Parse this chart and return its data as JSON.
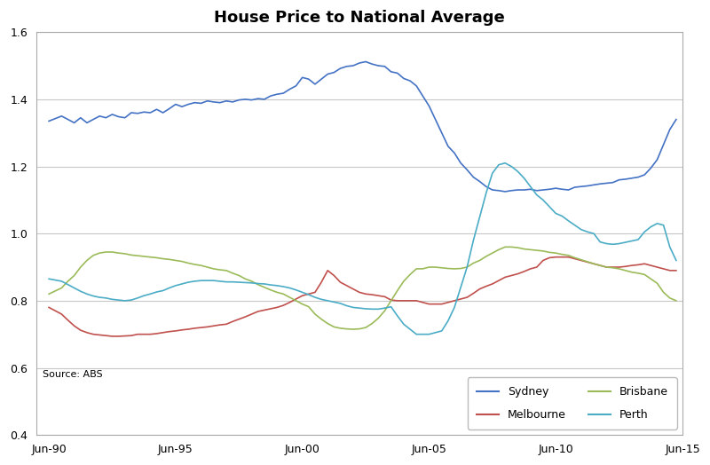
{
  "title": "House Price to National Average",
  "source_text": "Source: ABS",
  "ylim": [
    0.4,
    1.6
  ],
  "yticks": [
    0.4,
    0.6,
    0.8,
    1.0,
    1.2,
    1.4,
    1.6
  ],
  "xtick_labels": [
    "Jun-90",
    "Jun-95",
    "Jun-00",
    "Jun-05",
    "Jun-10",
    "Jun-15"
  ],
  "xtick_years": [
    1990,
    1995,
    2000,
    2005,
    2010,
    2015
  ],
  "xlim": [
    1990.0,
    2015.5
  ],
  "colors": {
    "Sydney": "#4472C4",
    "Melbourne": "#C0504D",
    "Brisbane": "#9BBB59",
    "Perth": "#4BACC6"
  },
  "Sydney": {
    "years": [
      1990.5,
      1991.0,
      1991.25,
      1991.5,
      1991.75,
      1992.0,
      1992.25,
      1992.5,
      1992.75,
      1993.0,
      1993.25,
      1993.5,
      1993.75,
      1994.0,
      1994.25,
      1994.5,
      1994.75,
      1995.0,
      1995.25,
      1995.5,
      1995.75,
      1996.0,
      1996.25,
      1996.5,
      1996.75,
      1997.0,
      1997.25,
      1997.5,
      1997.75,
      1998.0,
      1998.25,
      1998.5,
      1998.75,
      1999.0,
      1999.25,
      1999.5,
      1999.75,
      2000.0,
      2000.25,
      2000.5,
      2000.75,
      2001.0,
      2001.25,
      2001.5,
      2001.75,
      2002.0,
      2002.25,
      2002.5,
      2002.75,
      2003.0,
      2003.25,
      2003.5,
      2003.75,
      2004.0,
      2004.25,
      2004.5,
      2004.75,
      2005.0,
      2005.25,
      2005.5,
      2005.75,
      2006.0,
      2006.25,
      2006.5,
      2006.75,
      2007.0,
      2007.25,
      2007.5,
      2007.75,
      2008.0,
      2008.25,
      2008.5,
      2008.75,
      2009.0,
      2009.25,
      2009.5,
      2009.75,
      2010.0,
      2010.25,
      2010.5,
      2010.75,
      2011.0,
      2011.25,
      2011.5,
      2011.75,
      2012.0,
      2012.25,
      2012.5,
      2012.75,
      2013.0,
      2013.25,
      2013.5,
      2013.75,
      2014.0,
      2014.25,
      2014.5,
      2014.75,
      2015.0,
      2015.25
    ],
    "values": [
      1.335,
      1.35,
      1.34,
      1.33,
      1.345,
      1.33,
      1.34,
      1.35,
      1.345,
      1.355,
      1.348,
      1.345,
      1.36,
      1.358,
      1.362,
      1.36,
      1.37,
      1.36,
      1.372,
      1.385,
      1.378,
      1.385,
      1.39,
      1.388,
      1.395,
      1.392,
      1.39,
      1.395,
      1.392,
      1.398,
      1.4,
      1.398,
      1.402,
      1.4,
      1.41,
      1.415,
      1.418,
      1.43,
      1.44,
      1.465,
      1.46,
      1.445,
      1.46,
      1.475,
      1.48,
      1.492,
      1.498,
      1.5,
      1.508,
      1.512,
      1.505,
      1.5,
      1.498,
      1.482,
      1.478,
      1.462,
      1.455,
      1.44,
      1.41,
      1.38,
      1.34,
      1.3,
      1.26,
      1.24,
      1.21,
      1.19,
      1.168,
      1.155,
      1.14,
      1.13,
      1.128,
      1.125,
      1.128,
      1.13,
      1.13,
      1.132,
      1.128,
      1.13,
      1.132,
      1.135,
      1.132,
      1.13,
      1.138,
      1.14,
      1.142,
      1.145,
      1.148,
      1.15,
      1.152,
      1.16,
      1.162,
      1.165,
      1.168,
      1.175,
      1.195,
      1.22,
      1.265,
      1.31,
      1.34
    ]
  },
  "Melbourne": {
    "years": [
      1990.5,
      1991.0,
      1991.25,
      1991.5,
      1991.75,
      1992.0,
      1992.25,
      1992.5,
      1992.75,
      1993.0,
      1993.25,
      1993.5,
      1993.75,
      1994.0,
      1994.25,
      1994.5,
      1994.75,
      1995.0,
      1995.25,
      1995.5,
      1995.75,
      1996.0,
      1996.25,
      1996.5,
      1996.75,
      1997.0,
      1997.25,
      1997.5,
      1997.75,
      1998.0,
      1998.25,
      1998.5,
      1998.75,
      1999.0,
      1999.25,
      1999.5,
      1999.75,
      2000.0,
      2000.25,
      2000.5,
      2000.75,
      2001.0,
      2001.25,
      2001.5,
      2001.75,
      2002.0,
      2002.25,
      2002.5,
      2002.75,
      2003.0,
      2003.25,
      2003.5,
      2003.75,
      2004.0,
      2004.25,
      2004.5,
      2004.75,
      2005.0,
      2005.25,
      2005.5,
      2005.75,
      2006.0,
      2006.25,
      2006.5,
      2006.75,
      2007.0,
      2007.25,
      2007.5,
      2007.75,
      2008.0,
      2008.25,
      2008.5,
      2008.75,
      2009.0,
      2009.25,
      2009.5,
      2009.75,
      2010.0,
      2010.25,
      2010.5,
      2010.75,
      2011.0,
      2011.25,
      2011.5,
      2011.75,
      2012.0,
      2012.25,
      2012.5,
      2012.75,
      2013.0,
      2013.25,
      2013.5,
      2013.75,
      2014.0,
      2014.25,
      2014.5,
      2014.75,
      2015.0,
      2015.25
    ],
    "values": [
      0.78,
      0.76,
      0.742,
      0.725,
      0.712,
      0.705,
      0.7,
      0.698,
      0.696,
      0.694,
      0.694,
      0.695,
      0.696,
      0.7,
      0.7,
      0.7,
      0.702,
      0.705,
      0.708,
      0.71,
      0.713,
      0.715,
      0.718,
      0.72,
      0.722,
      0.725,
      0.728,
      0.73,
      0.738,
      0.745,
      0.752,
      0.76,
      0.768,
      0.772,
      0.776,
      0.78,
      0.786,
      0.795,
      0.805,
      0.815,
      0.82,
      0.825,
      0.855,
      0.89,
      0.875,
      0.855,
      0.845,
      0.835,
      0.825,
      0.82,
      0.818,
      0.815,
      0.812,
      0.802,
      0.8,
      0.8,
      0.8,
      0.8,
      0.795,
      0.79,
      0.79,
      0.79,
      0.795,
      0.8,
      0.805,
      0.81,
      0.822,
      0.835,
      0.843,
      0.85,
      0.86,
      0.87,
      0.875,
      0.88,
      0.887,
      0.895,
      0.9,
      0.92,
      0.928,
      0.93,
      0.93,
      0.93,
      0.925,
      0.92,
      0.915,
      0.91,
      0.905,
      0.9,
      0.9,
      0.9,
      0.902,
      0.905,
      0.907,
      0.91,
      0.905,
      0.9,
      0.895,
      0.89,
      0.89
    ]
  },
  "Brisbane": {
    "years": [
      1990.5,
      1991.0,
      1991.25,
      1991.5,
      1991.75,
      1992.0,
      1992.25,
      1992.5,
      1992.75,
      1993.0,
      1993.25,
      1993.5,
      1993.75,
      1994.0,
      1994.25,
      1994.5,
      1994.75,
      1995.0,
      1995.25,
      1995.5,
      1995.75,
      1996.0,
      1996.25,
      1996.5,
      1996.75,
      1997.0,
      1997.25,
      1997.5,
      1997.75,
      1998.0,
      1998.25,
      1998.5,
      1998.75,
      1999.0,
      1999.25,
      1999.5,
      1999.75,
      2000.0,
      2000.25,
      2000.5,
      2000.75,
      2001.0,
      2001.25,
      2001.5,
      2001.75,
      2002.0,
      2002.25,
      2002.5,
      2002.75,
      2003.0,
      2003.25,
      2003.5,
      2003.75,
      2004.0,
      2004.25,
      2004.5,
      2004.75,
      2005.0,
      2005.25,
      2005.5,
      2005.75,
      2006.0,
      2006.25,
      2006.5,
      2006.75,
      2007.0,
      2007.25,
      2007.5,
      2007.75,
      2008.0,
      2008.25,
      2008.5,
      2008.75,
      2009.0,
      2009.25,
      2009.5,
      2009.75,
      2010.0,
      2010.25,
      2010.5,
      2010.75,
      2011.0,
      2011.25,
      2011.5,
      2011.75,
      2012.0,
      2012.25,
      2012.5,
      2012.75,
      2013.0,
      2013.25,
      2013.5,
      2013.75,
      2014.0,
      2014.25,
      2014.5,
      2014.75,
      2015.0,
      2015.25
    ],
    "values": [
      0.82,
      0.838,
      0.858,
      0.875,
      0.9,
      0.92,
      0.935,
      0.942,
      0.945,
      0.945,
      0.942,
      0.94,
      0.936,
      0.934,
      0.932,
      0.93,
      0.928,
      0.925,
      0.923,
      0.92,
      0.917,
      0.912,
      0.908,
      0.905,
      0.9,
      0.895,
      0.892,
      0.89,
      0.882,
      0.875,
      0.865,
      0.858,
      0.848,
      0.84,
      0.832,
      0.825,
      0.82,
      0.81,
      0.8,
      0.79,
      0.782,
      0.76,
      0.745,
      0.732,
      0.722,
      0.718,
      0.716,
      0.715,
      0.716,
      0.72,
      0.732,
      0.748,
      0.77,
      0.8,
      0.83,
      0.858,
      0.878,
      0.895,
      0.895,
      0.9,
      0.9,
      0.898,
      0.896,
      0.895,
      0.896,
      0.9,
      0.912,
      0.92,
      0.932,
      0.942,
      0.952,
      0.96,
      0.96,
      0.958,
      0.954,
      0.952,
      0.95,
      0.948,
      0.944,
      0.942,
      0.938,
      0.935,
      0.928,
      0.922,
      0.916,
      0.91,
      0.905,
      0.9,
      0.898,
      0.895,
      0.89,
      0.885,
      0.882,
      0.878,
      0.865,
      0.852,
      0.825,
      0.808,
      0.8
    ]
  },
  "Perth": {
    "years": [
      1990.5,
      1991.0,
      1991.25,
      1991.5,
      1991.75,
      1992.0,
      1992.25,
      1992.5,
      1992.75,
      1993.0,
      1993.25,
      1993.5,
      1993.75,
      1994.0,
      1994.25,
      1994.5,
      1994.75,
      1995.0,
      1995.25,
      1995.5,
      1995.75,
      1996.0,
      1996.25,
      1996.5,
      1996.75,
      1997.0,
      1997.25,
      1997.5,
      1997.75,
      1998.0,
      1998.25,
      1998.5,
      1998.75,
      1999.0,
      1999.25,
      1999.5,
      1999.75,
      2000.0,
      2000.25,
      2000.5,
      2000.75,
      2001.0,
      2001.25,
      2001.5,
      2001.75,
      2002.0,
      2002.25,
      2002.5,
      2002.75,
      2003.0,
      2003.25,
      2003.5,
      2003.75,
      2004.0,
      2004.25,
      2004.5,
      2004.75,
      2005.0,
      2005.25,
      2005.5,
      2005.75,
      2006.0,
      2006.25,
      2006.5,
      2006.75,
      2007.0,
      2007.25,
      2007.5,
      2007.75,
      2008.0,
      2008.25,
      2008.5,
      2008.75,
      2009.0,
      2009.25,
      2009.5,
      2009.75,
      2010.0,
      2010.25,
      2010.5,
      2010.75,
      2011.0,
      2011.25,
      2011.5,
      2011.75,
      2012.0,
      2012.25,
      2012.5,
      2012.75,
      2013.0,
      2013.25,
      2013.5,
      2013.75,
      2014.0,
      2014.25,
      2014.5,
      2014.75,
      2015.0,
      2015.25
    ],
    "values": [
      0.865,
      0.858,
      0.848,
      0.838,
      0.828,
      0.82,
      0.814,
      0.81,
      0.808,
      0.804,
      0.802,
      0.8,
      0.802,
      0.808,
      0.815,
      0.82,
      0.826,
      0.83,
      0.838,
      0.845,
      0.85,
      0.855,
      0.858,
      0.86,
      0.86,
      0.86,
      0.858,
      0.856,
      0.856,
      0.855,
      0.854,
      0.853,
      0.851,
      0.85,
      0.847,
      0.845,
      0.842,
      0.838,
      0.832,
      0.825,
      0.818,
      0.81,
      0.804,
      0.8,
      0.796,
      0.792,
      0.785,
      0.78,
      0.778,
      0.776,
      0.775,
      0.775,
      0.778,
      0.782,
      0.755,
      0.73,
      0.715,
      0.7,
      0.7,
      0.7,
      0.705,
      0.71,
      0.74,
      0.78,
      0.84,
      0.9,
      0.98,
      1.05,
      1.12,
      1.18,
      1.205,
      1.21,
      1.2,
      1.185,
      1.165,
      1.14,
      1.115,
      1.1,
      1.08,
      1.06,
      1.052,
      1.038,
      1.025,
      1.012,
      1.005,
      1.0,
      0.975,
      0.97,
      0.968,
      0.97,
      0.974,
      0.978,
      0.982,
      1.005,
      1.02,
      1.03,
      1.025,
      0.96,
      0.92
    ]
  }
}
